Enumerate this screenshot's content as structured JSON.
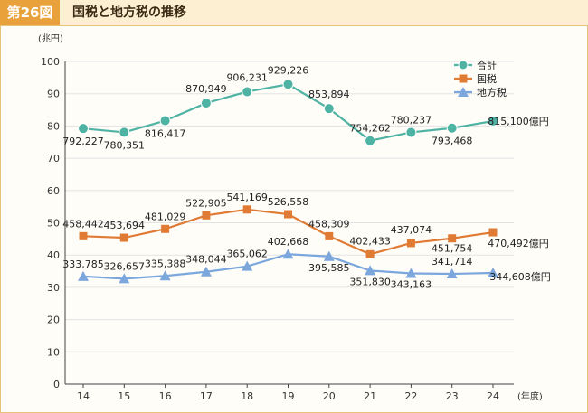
{
  "header": {
    "figure_label": "第26図",
    "title": "国税と地方税の推移"
  },
  "chart_data": {
    "type": "line",
    "title": "国税と地方税の推移",
    "ylabel": "(兆円)",
    "xlabel": "(年度)",
    "ylim": [
      0,
      100
    ],
    "yticks": [
      0,
      10,
      20,
      30,
      40,
      50,
      60,
      70,
      80,
      90,
      100
    ],
    "x": [
      "14",
      "15",
      "16",
      "17",
      "18",
      "19",
      "20",
      "21",
      "22",
      "23",
      "24"
    ],
    "grid": "horizontal",
    "legend_position": "top-right",
    "series": [
      {
        "name": "合計",
        "color": "#4fb3a4",
        "marker": "circle",
        "values": [
          79.2227,
          78.0351,
          81.6417,
          87.0949,
          90.6231,
          92.9226,
          85.3894,
          75.4262,
          78.0237,
          79.3468,
          81.51
        ],
        "labels": [
          "792,227",
          "780,351",
          "816,417",
          "870,949",
          "906,231",
          "929,226",
          "853,894",
          "754,262",
          "780,237",
          "793,468",
          "815,100億円"
        ]
      },
      {
        "name": "国税",
        "color": "#e07b35",
        "marker": "square",
        "values": [
          45.8442,
          45.3694,
          48.1029,
          52.2905,
          54.1169,
          52.6558,
          45.8309,
          40.2433,
          43.7074,
          45.1754,
          47.0492
        ],
        "labels": [
          "458,442",
          "453,694",
          "481,029",
          "522,905",
          "541,169",
          "526,558",
          "458,309",
          "402,433",
          "437,074",
          "451,754",
          "470,492億円"
        ]
      },
      {
        "name": "地方税",
        "color": "#7ba7dd",
        "marker": "triangle",
        "values": [
          33.3785,
          32.6657,
          33.5388,
          34.8044,
          36.5062,
          40.2668,
          39.5585,
          35.183,
          34.3163,
          34.1714,
          34.4608
        ],
        "labels": [
          "333,785",
          "326,657",
          "335,388",
          "348,044",
          "365,062",
          "402,668",
          "395,585",
          "351,830",
          "343,163",
          "341,714",
          "344,608億円"
        ]
      }
    ]
  }
}
